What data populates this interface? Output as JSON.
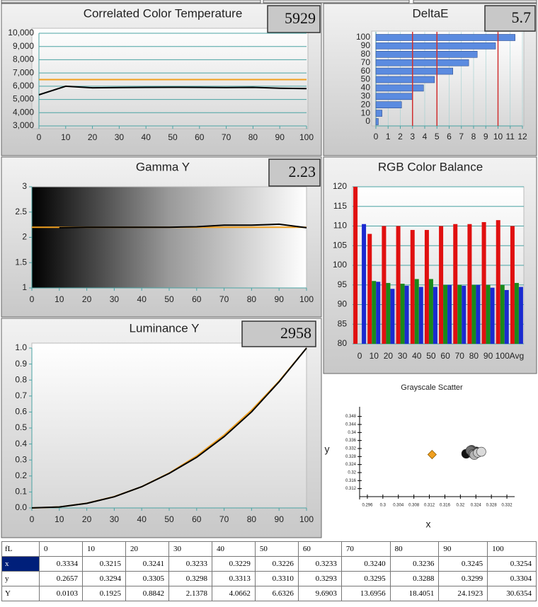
{
  "chart_data": [
    {
      "type": "line",
      "title": "Correlated Color Temperature",
      "readout": "5929",
      "x": [
        0,
        10,
        20,
        30,
        40,
        50,
        60,
        70,
        80,
        90,
        100
      ],
      "xlim": [
        0,
        100
      ],
      "xticks": [
        0,
        10,
        20,
        30,
        40,
        50,
        60,
        70,
        80,
        90,
        100
      ],
      "ylim": [
        3000,
        10000
      ],
      "yticks": [
        {
          "value": 3000,
          "label": "3,000"
        },
        {
          "value": 4000,
          "label": "4,000"
        },
        {
          "value": 5000,
          "label": "5,000"
        },
        {
          "value": 6000,
          "label": "6,000"
        },
        {
          "value": 7000,
          "label": "7,000"
        },
        {
          "value": 8000,
          "label": "8,000"
        },
        {
          "value": 9000,
          "label": "9,000"
        },
        {
          "value": 10000,
          "label": "10,000"
        }
      ],
      "grid": true,
      "series": [
        {
          "color": "#f0a020",
          "values": [
            6500,
            6500,
            6500,
            6500,
            6500,
            6500,
            6500,
            6500,
            6500,
            6500,
            6500
          ]
        },
        {
          "color": "#000000",
          "values": [
            5350,
            6000,
            5880,
            5900,
            5910,
            5920,
            5910,
            5900,
            5910,
            5850,
            5820
          ]
        }
      ]
    },
    {
      "type": "hbar",
      "title": "DeltaE",
      "readout": "5.7",
      "categories": [
        0,
        10,
        20,
        30,
        40,
        50,
        60,
        70,
        80,
        90,
        100
      ],
      "values": [
        0.2,
        0.5,
        2.1,
        3.0,
        3.9,
        4.8,
        6.3,
        7.6,
        8.3,
        9.8,
        11.4
      ],
      "color": "#5b8be0",
      "xlim": [
        0,
        12
      ],
      "xticks": [
        0,
        1,
        2,
        3,
        4,
        5,
        6,
        7,
        8,
        9,
        10,
        11,
        12
      ],
      "reference_lines": [
        3,
        5,
        10
      ],
      "reference_color": "#d03030",
      "grid": true
    },
    {
      "type": "line",
      "title": "Gamma Y",
      "readout": "2.23",
      "x": [
        0,
        10,
        20,
        30,
        40,
        50,
        60,
        70,
        80,
        90,
        100
      ],
      "xlim": [
        0,
        100
      ],
      "xticks": [
        0,
        10,
        20,
        30,
        40,
        50,
        60,
        70,
        80,
        90,
        100
      ],
      "ylim": [
        1,
        3
      ],
      "yticks": [
        1,
        1.5,
        2,
        2.5,
        3
      ],
      "grid": false,
      "series": [
        {
          "color": "#f0a020",
          "values": [
            2.2,
            2.2,
            2.2,
            2.2,
            2.2,
            2.2,
            2.2,
            2.2,
            2.2,
            2.2,
            2.2
          ]
        },
        {
          "color": "#000000",
          "values": [
            null,
            2.19,
            2.2,
            2.2,
            2.2,
            2.2,
            2.21,
            2.24,
            2.24,
            2.26,
            2.19
          ]
        }
      ]
    },
    {
      "type": "grouped-bar",
      "title": "RGB Color Balance",
      "categories": [
        0,
        10,
        20,
        30,
        40,
        50,
        60,
        70,
        80,
        90,
        100,
        "Avg"
      ],
      "ylim": [
        80,
        120
      ],
      "yticks": [
        80,
        85,
        90,
        95,
        100,
        105,
        110,
        115,
        120
      ],
      "grid": true,
      "series": [
        {
          "color": "#e01010",
          "values": [
            120,
            108,
            110,
            110,
            109,
            109,
            110,
            110.5,
            110.5,
            111,
            111.5,
            110
          ]
        },
        {
          "color": "#1a8a1a",
          "values": [
            null,
            96,
            95.5,
            95.3,
            96.5,
            96.5,
            95,
            95,
            95,
            95,
            95,
            95.5
          ]
        },
        {
          "color": "#1a2ad0",
          "values": [
            110.5,
            95.8,
            94,
            94.8,
            94.5,
            94.5,
            95,
            94.8,
            95,
            94.3,
            93.7,
            94.5
          ]
        }
      ]
    },
    {
      "type": "line",
      "title": "Luminance Y",
      "readout": "2958",
      "x": [
        0,
        10,
        20,
        30,
        40,
        50,
        60,
        70,
        80,
        90,
        100
      ],
      "xlim": [
        0,
        100
      ],
      "xticks": [
        0,
        10,
        20,
        30,
        40,
        50,
        60,
        70,
        80,
        90,
        100
      ],
      "ylim": [
        0,
        1
      ],
      "yticks": [
        {
          "value": 0,
          "label": "0.0"
        },
        0.1,
        0.2,
        0.3,
        0.4,
        0.5,
        0.6,
        0.7,
        0.8,
        0.9,
        {
          "value": 1,
          "label": "1.0"
        }
      ],
      "grid": false,
      "series": [
        {
          "color": "#f0a020",
          "values": [
            0,
            0.0063,
            0.029,
            0.071,
            0.133,
            0.218,
            0.325,
            0.456,
            0.612,
            0.793,
            1.0
          ]
        },
        {
          "color": "#000000",
          "values": [
            0.0003,
            0.0063,
            0.0289,
            0.0698,
            0.1327,
            0.2165,
            0.3167,
            0.446,
            0.6008,
            0.7891,
            1.0
          ]
        }
      ]
    },
    {
      "type": "scatter",
      "title": "Grayscale Scatter",
      "xlabel": "x",
      "ylabel": "y",
      "xlim": [
        0.294,
        0.334
      ],
      "ylim": [
        0.308,
        0.35
      ],
      "xticks": [
        0.296,
        0.3,
        0.304,
        0.308,
        0.312,
        0.316,
        0.32,
        0.324,
        0.328,
        0.332
      ],
      "yticks": [
        0.312,
        0.316,
        0.32,
        0.324,
        0.328,
        0.332,
        0.336,
        0.34,
        0.344,
        0.348
      ],
      "series": [
        {
          "color": "#f0a020",
          "marker": "diamond",
          "x": [
            0.3127
          ],
          "values": [
            0.329
          ]
        },
        {
          "marker": "circle",
          "colors": [
            "#111111",
            "#2a2a2a",
            "#444444",
            "#5a5a5a",
            "#707070",
            "#868686",
            "#9c9c9c",
            "#b2b2b2",
            "#c6c6c6",
            "#dadada"
          ],
          "x": [
            0.3215,
            0.3241,
            0.3233,
            0.3229,
            0.3226,
            0.3233,
            0.324,
            0.3236,
            0.3245,
            0.3254
          ],
          "values": [
            0.3294,
            0.3305,
            0.3298,
            0.3313,
            0.331,
            0.3293,
            0.3295,
            0.3288,
            0.3299,
            0.3304
          ]
        }
      ]
    }
  ],
  "table": {
    "header": [
      "fL",
      "0",
      "10",
      "20",
      "30",
      "40",
      "50",
      "60",
      "70",
      "80",
      "90",
      "100"
    ],
    "rows": [
      [
        "x",
        "0.3334",
        "0.3215",
        "0.3241",
        "0.3233",
        "0.3229",
        "0.3226",
        "0.3233",
        "0.3240",
        "0.3236",
        "0.3245",
        "0.3254"
      ],
      [
        "y",
        "0.2657",
        "0.3294",
        "0.3305",
        "0.3298",
        "0.3313",
        "0.3310",
        "0.3293",
        "0.3295",
        "0.3288",
        "0.3299",
        "0.3304"
      ],
      [
        "Y",
        "0.0103",
        "0.1925",
        "0.8842",
        "2.1378",
        "4.0662",
        "6.6326",
        "9.6903",
        "13.6956",
        "18.4051",
        "24.1923",
        "30.6354"
      ]
    ]
  }
}
